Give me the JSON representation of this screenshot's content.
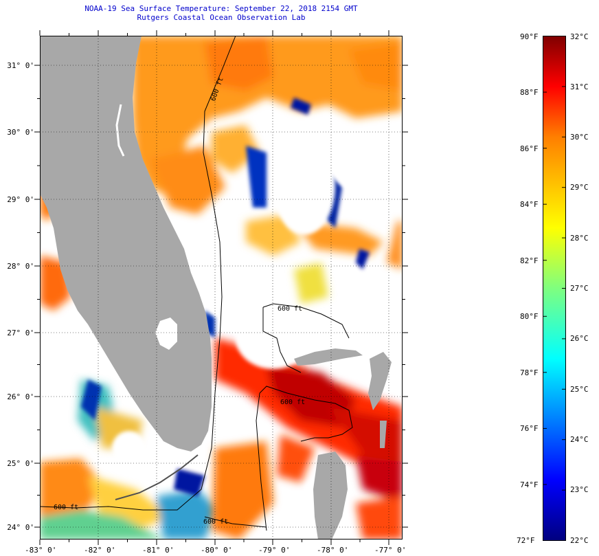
{
  "title": {
    "line1": "NOAA-19 Sea Surface Temperature:  September 22, 2018 2154 GMT",
    "line2": "Rutgers Coastal Ocean Observation Lab"
  },
  "axes": {
    "latitude_labels": [
      "31° 0'",
      "30° 0'",
      "29° 0'",
      "28° 0'",
      "27° 0'",
      "26° 0'",
      "25° 0'",
      "24° 0'"
    ],
    "longitude_labels": [
      "-83° 0'",
      "-82° 0'",
      "-81° 0'",
      "-80° 0'",
      "-79° 0'",
      "-78° 0'",
      "-77° 0'"
    ]
  },
  "contour_labels": [
    "600 ft",
    "600 ft",
    "600 ft",
    "600 ft",
    "600 ft"
  ],
  "colorbar": {
    "fahrenheit": [
      "90°F",
      "88°F",
      "86°F",
      "84°F",
      "82°F",
      "80°F",
      "78°F",
      "76°F",
      "74°F",
      "72°F"
    ],
    "celsius": [
      "32°C",
      "31°C",
      "30°C",
      "29°C",
      "28°C",
      "27°C",
      "26°C",
      "25°C",
      "24°C",
      "23°C",
      "22°C"
    ]
  },
  "colors": {
    "land": "#a8a8a8",
    "title_text": "#0000cc",
    "scale_min": "#00007f",
    "scale_max": "#7f0000"
  }
}
